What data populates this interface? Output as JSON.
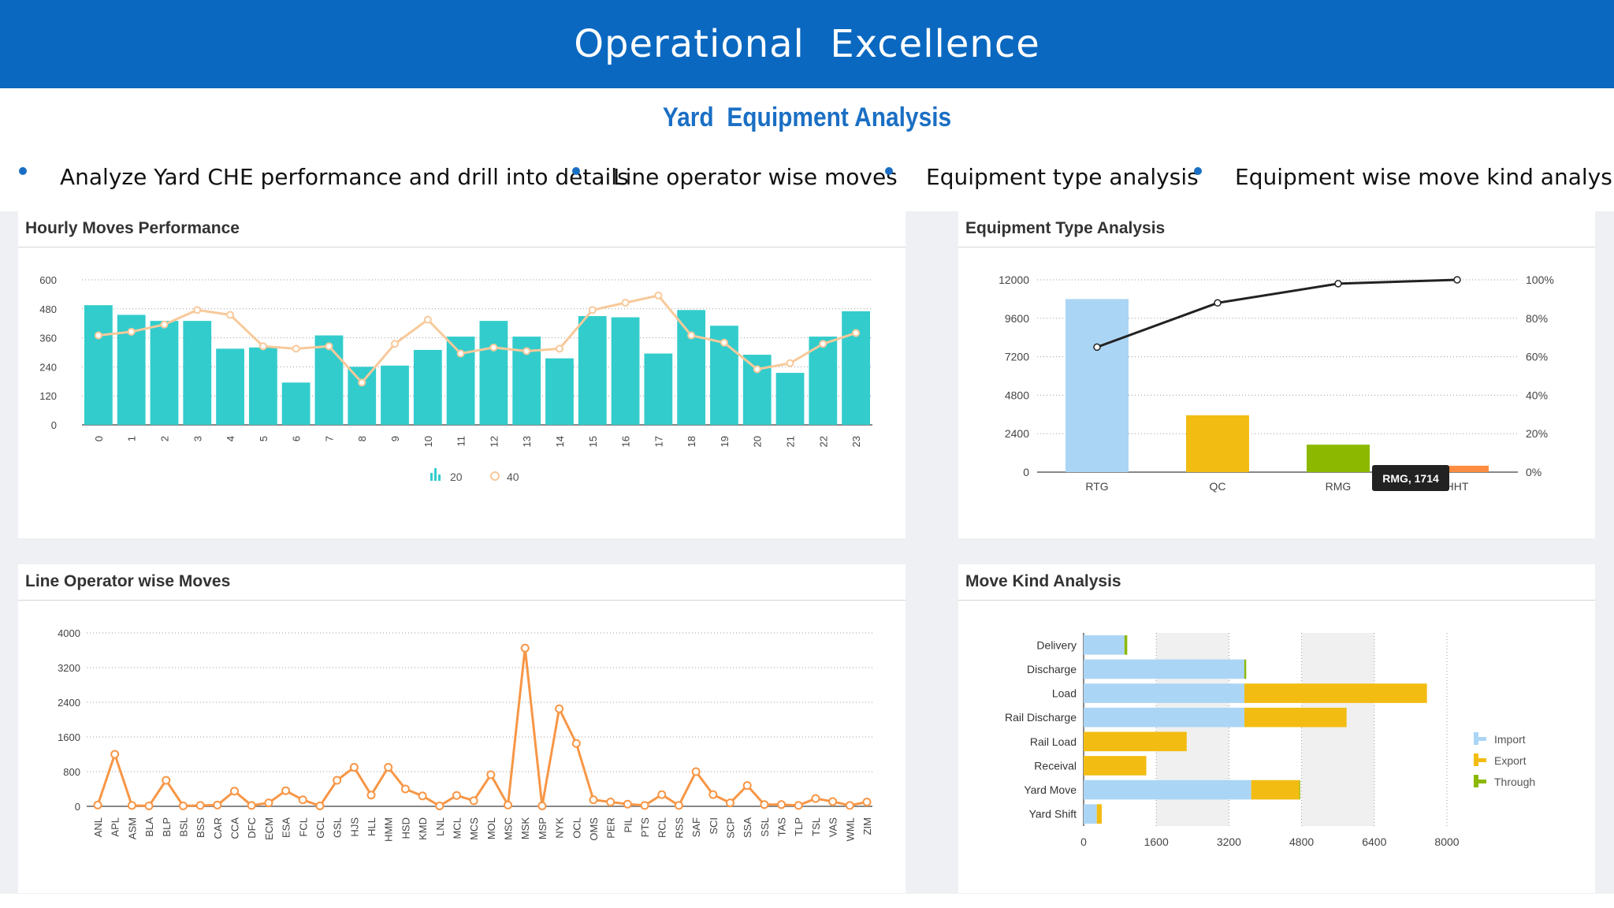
{
  "header": {
    "title": "Operational  Excellence"
  },
  "subtitle": "Yard  Equipment Analysis",
  "bullets": [
    "Analyze Yard CHE performance and drill into details",
    "Line operator wise moves",
    "Equipment type analysis",
    "Equipment wise move kind analysis"
  ],
  "colors": {
    "header": "#0a68c0",
    "accent": "#1a6fc4",
    "teal": "#33cccc",
    "peach": "#f8c99a",
    "orange": "#f79646",
    "rtg": "#abd5f5",
    "qc": "#f2bc12",
    "rmg": "#8cb800",
    "hht": "#ff8c40"
  },
  "panels": {
    "hourly": "Hourly Moves Performance",
    "equipment": "Equipment Type Analysis",
    "line_operator": "Line Operator wise Moves",
    "move_kind": "Move Kind Analysis"
  },
  "chart_data": [
    {
      "type": "bar",
      "title": "Hourly Moves Performance",
      "categories": [
        "0",
        "1",
        "2",
        "3",
        "4",
        "5",
        "6",
        "7",
        "8",
        "9",
        "10",
        "11",
        "12",
        "13",
        "14",
        "15",
        "16",
        "17",
        "18",
        "19",
        "20",
        "21",
        "22",
        "23"
      ],
      "ylim": [
        0,
        600
      ],
      "yticks": [
        0,
        120,
        240,
        360,
        480,
        600
      ],
      "grid": true,
      "legend": "bottom",
      "series": [
        {
          "name": "20",
          "type": "bar",
          "values": [
            495,
            455,
            430,
            430,
            315,
            320,
            175,
            370,
            240,
            245,
            310,
            365,
            430,
            365,
            275,
            450,
            445,
            295,
            475,
            410,
            290,
            215,
            365,
            470
          ]
        },
        {
          "name": "40",
          "type": "line",
          "values": [
            370,
            385,
            415,
            475,
            455,
            325,
            315,
            325,
            175,
            335,
            435,
            295,
            320,
            305,
            315,
            475,
            505,
            535,
            370,
            340,
            230,
            255,
            335,
            380
          ]
        }
      ]
    },
    {
      "type": "bar",
      "title": "Equipment Type Analysis",
      "categories": [
        "RTG",
        "QC",
        "RMG",
        "HHT"
      ],
      "values": [
        10800,
        3550,
        1714,
        400
      ],
      "cumulative_percent": [
        65,
        88,
        98,
        100
      ],
      "ylim": [
        0,
        12000
      ],
      "yticks": [
        0,
        2400,
        4800,
        7200,
        9600,
        12000
      ],
      "y2ticks": [
        "0%",
        "20%",
        "40%",
        "60%",
        "80%",
        "100%"
      ],
      "grid": true,
      "tooltip": "RMG, 1714"
    },
    {
      "type": "line",
      "title": "Line Operator wise Moves",
      "categories": [
        "ANL",
        "APL",
        "ASM",
        "BLA",
        "BLP",
        "BSL",
        "BSS",
        "CAR",
        "CCA",
        "DFC",
        "ECM",
        "ESA",
        "FCL",
        "GCL",
        "GSL",
        "HJS",
        "HLL",
        "HMM",
        "HSD",
        "KMD",
        "LNL",
        "MCL",
        "MCS",
        "MOL",
        "MSC",
        "MSK",
        "MSP",
        "NYK",
        "OCL",
        "OMS",
        "PER",
        "PIL",
        "PTS",
        "RCL",
        "RSS",
        "SAF",
        "SCI",
        "SCP",
        "SSA",
        "SSL",
        "TAS",
        "TLP",
        "TSL",
        "VAS",
        "WML",
        "ZIM"
      ],
      "values": [
        30,
        1200,
        20,
        10,
        600,
        10,
        20,
        30,
        350,
        20,
        80,
        360,
        150,
        10,
        600,
        900,
        260,
        900,
        400,
        240,
        10,
        250,
        130,
        730,
        30,
        3650,
        10,
        2250,
        1450,
        150,
        100,
        50,
        20,
        270,
        20,
        800,
        270,
        80,
        480,
        40,
        40,
        20,
        180,
        110,
        20,
        100
      ],
      "ylim": [
        0,
        4000
      ],
      "yticks": [
        0,
        800,
        1600,
        2400,
        3200,
        4000
      ],
      "grid": true
    },
    {
      "type": "bar",
      "orientation": "horizontal",
      "stacked": true,
      "title": "Move Kind Analysis",
      "categories": [
        "Delivery",
        "Discharge",
        "Load",
        "Rail Discharge",
        "Rail Load",
        "Receival",
        "Yard Move",
        "Yard Shift"
      ],
      "series": [
        {
          "name": "Import",
          "values": [
            900,
            3540,
            3540,
            3540,
            0,
            0,
            3690,
            290
          ]
        },
        {
          "name": "Export",
          "values": [
            0,
            0,
            4020,
            2250,
            2270,
            1380,
            1060,
            110
          ]
        },
        {
          "name": "Through",
          "values": [
            60,
            40,
            0,
            0,
            0,
            0,
            20,
            0
          ]
        }
      ],
      "xlim": [
        0,
        8000
      ],
      "xticks": [
        0,
        1600,
        3200,
        4800,
        6400,
        8000
      ],
      "legend": "right"
    }
  ]
}
